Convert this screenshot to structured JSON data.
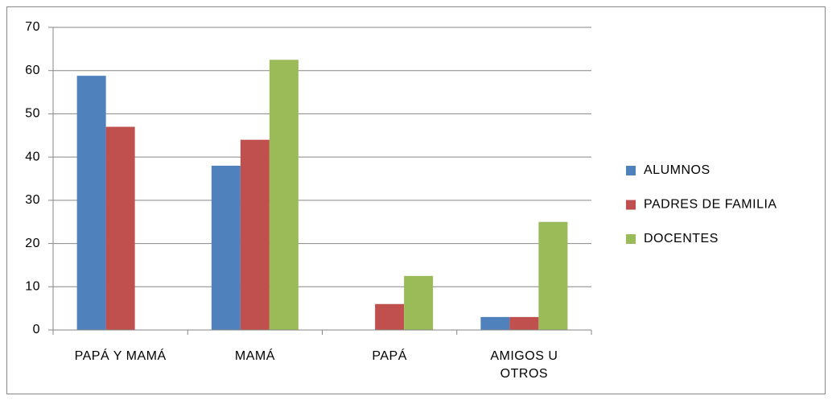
{
  "chart_data": {
    "type": "bar",
    "categories": [
      "PAPÁ Y MAMÁ",
      "MAMÁ",
      "PAPÁ",
      "AMIGOS U OTROS"
    ],
    "series": [
      {
        "name": "ALUMNOS",
        "color": "#4f81bd",
        "values": [
          58.8,
          38,
          0,
          3
        ]
      },
      {
        "name": "PADRES DE FAMILIA",
        "color": "#c0504d",
        "values": [
          47,
          44,
          6,
          3
        ]
      },
      {
        "name": "DOCENTES",
        "color": "#9bbb59",
        "values": [
          0,
          62.5,
          12.5,
          25
        ]
      }
    ],
    "ylim": [
      0,
      70
    ],
    "yticks": [
      0,
      10,
      20,
      30,
      40,
      50,
      60,
      70
    ],
    "grid": true,
    "legend": "right"
  }
}
